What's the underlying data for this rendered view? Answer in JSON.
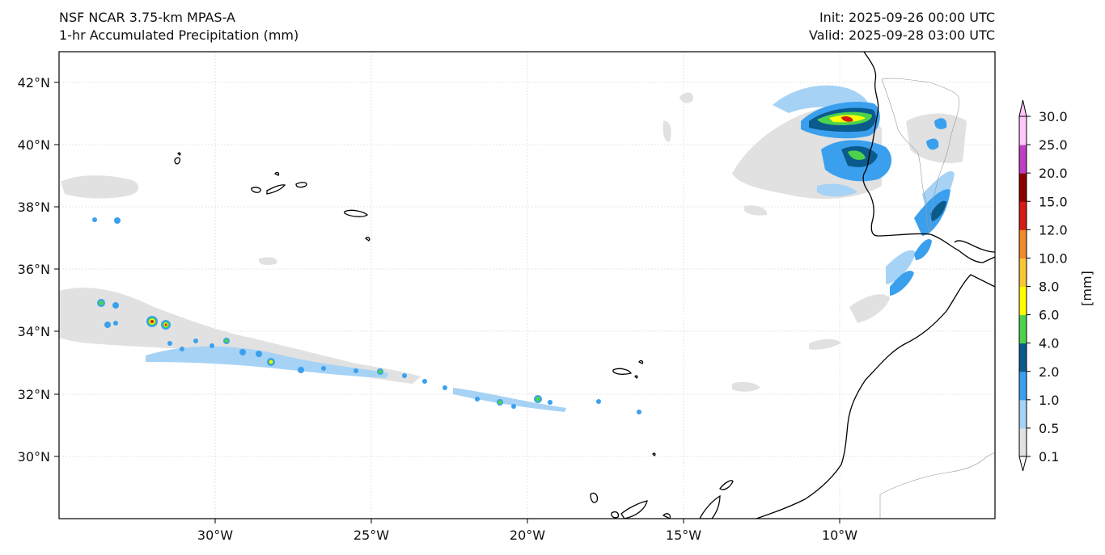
{
  "header": {
    "model": "NSF NCAR 3.75-km MPAS-A",
    "field": "1-hr Accumulated Precipitation (mm)",
    "init": "Init: 2025-09-26 00:00 UTC",
    "valid": "Valid: 2025-09-28 03:00 UTC"
  },
  "map": {
    "lat_labels": [
      "42°N",
      "40°N",
      "38°N",
      "36°N",
      "34°N",
      "32°N",
      "30°N"
    ],
    "lon_labels": [
      "30°W",
      "25°W",
      "20°W",
      "15°W",
      "10°W"
    ]
  },
  "colorbar": {
    "unit": "[mm]",
    "levels": [
      "0.1",
      "0.5",
      "1.0",
      "2.0",
      "4.0",
      "6.0",
      "8.0",
      "10.0",
      "12.0",
      "15.0",
      "20.0",
      "25.0",
      "30.0"
    ],
    "colors": [
      "#e1e1e1",
      "#a6d2f5",
      "#3aa0ee",
      "#0b5a8c",
      "#4dd24d",
      "#ffff00",
      "#f9c634",
      "#f08a2a",
      "#d61a14",
      "#8a0000",
      "#be3ec4",
      "#ffc6fa"
    ]
  }
}
